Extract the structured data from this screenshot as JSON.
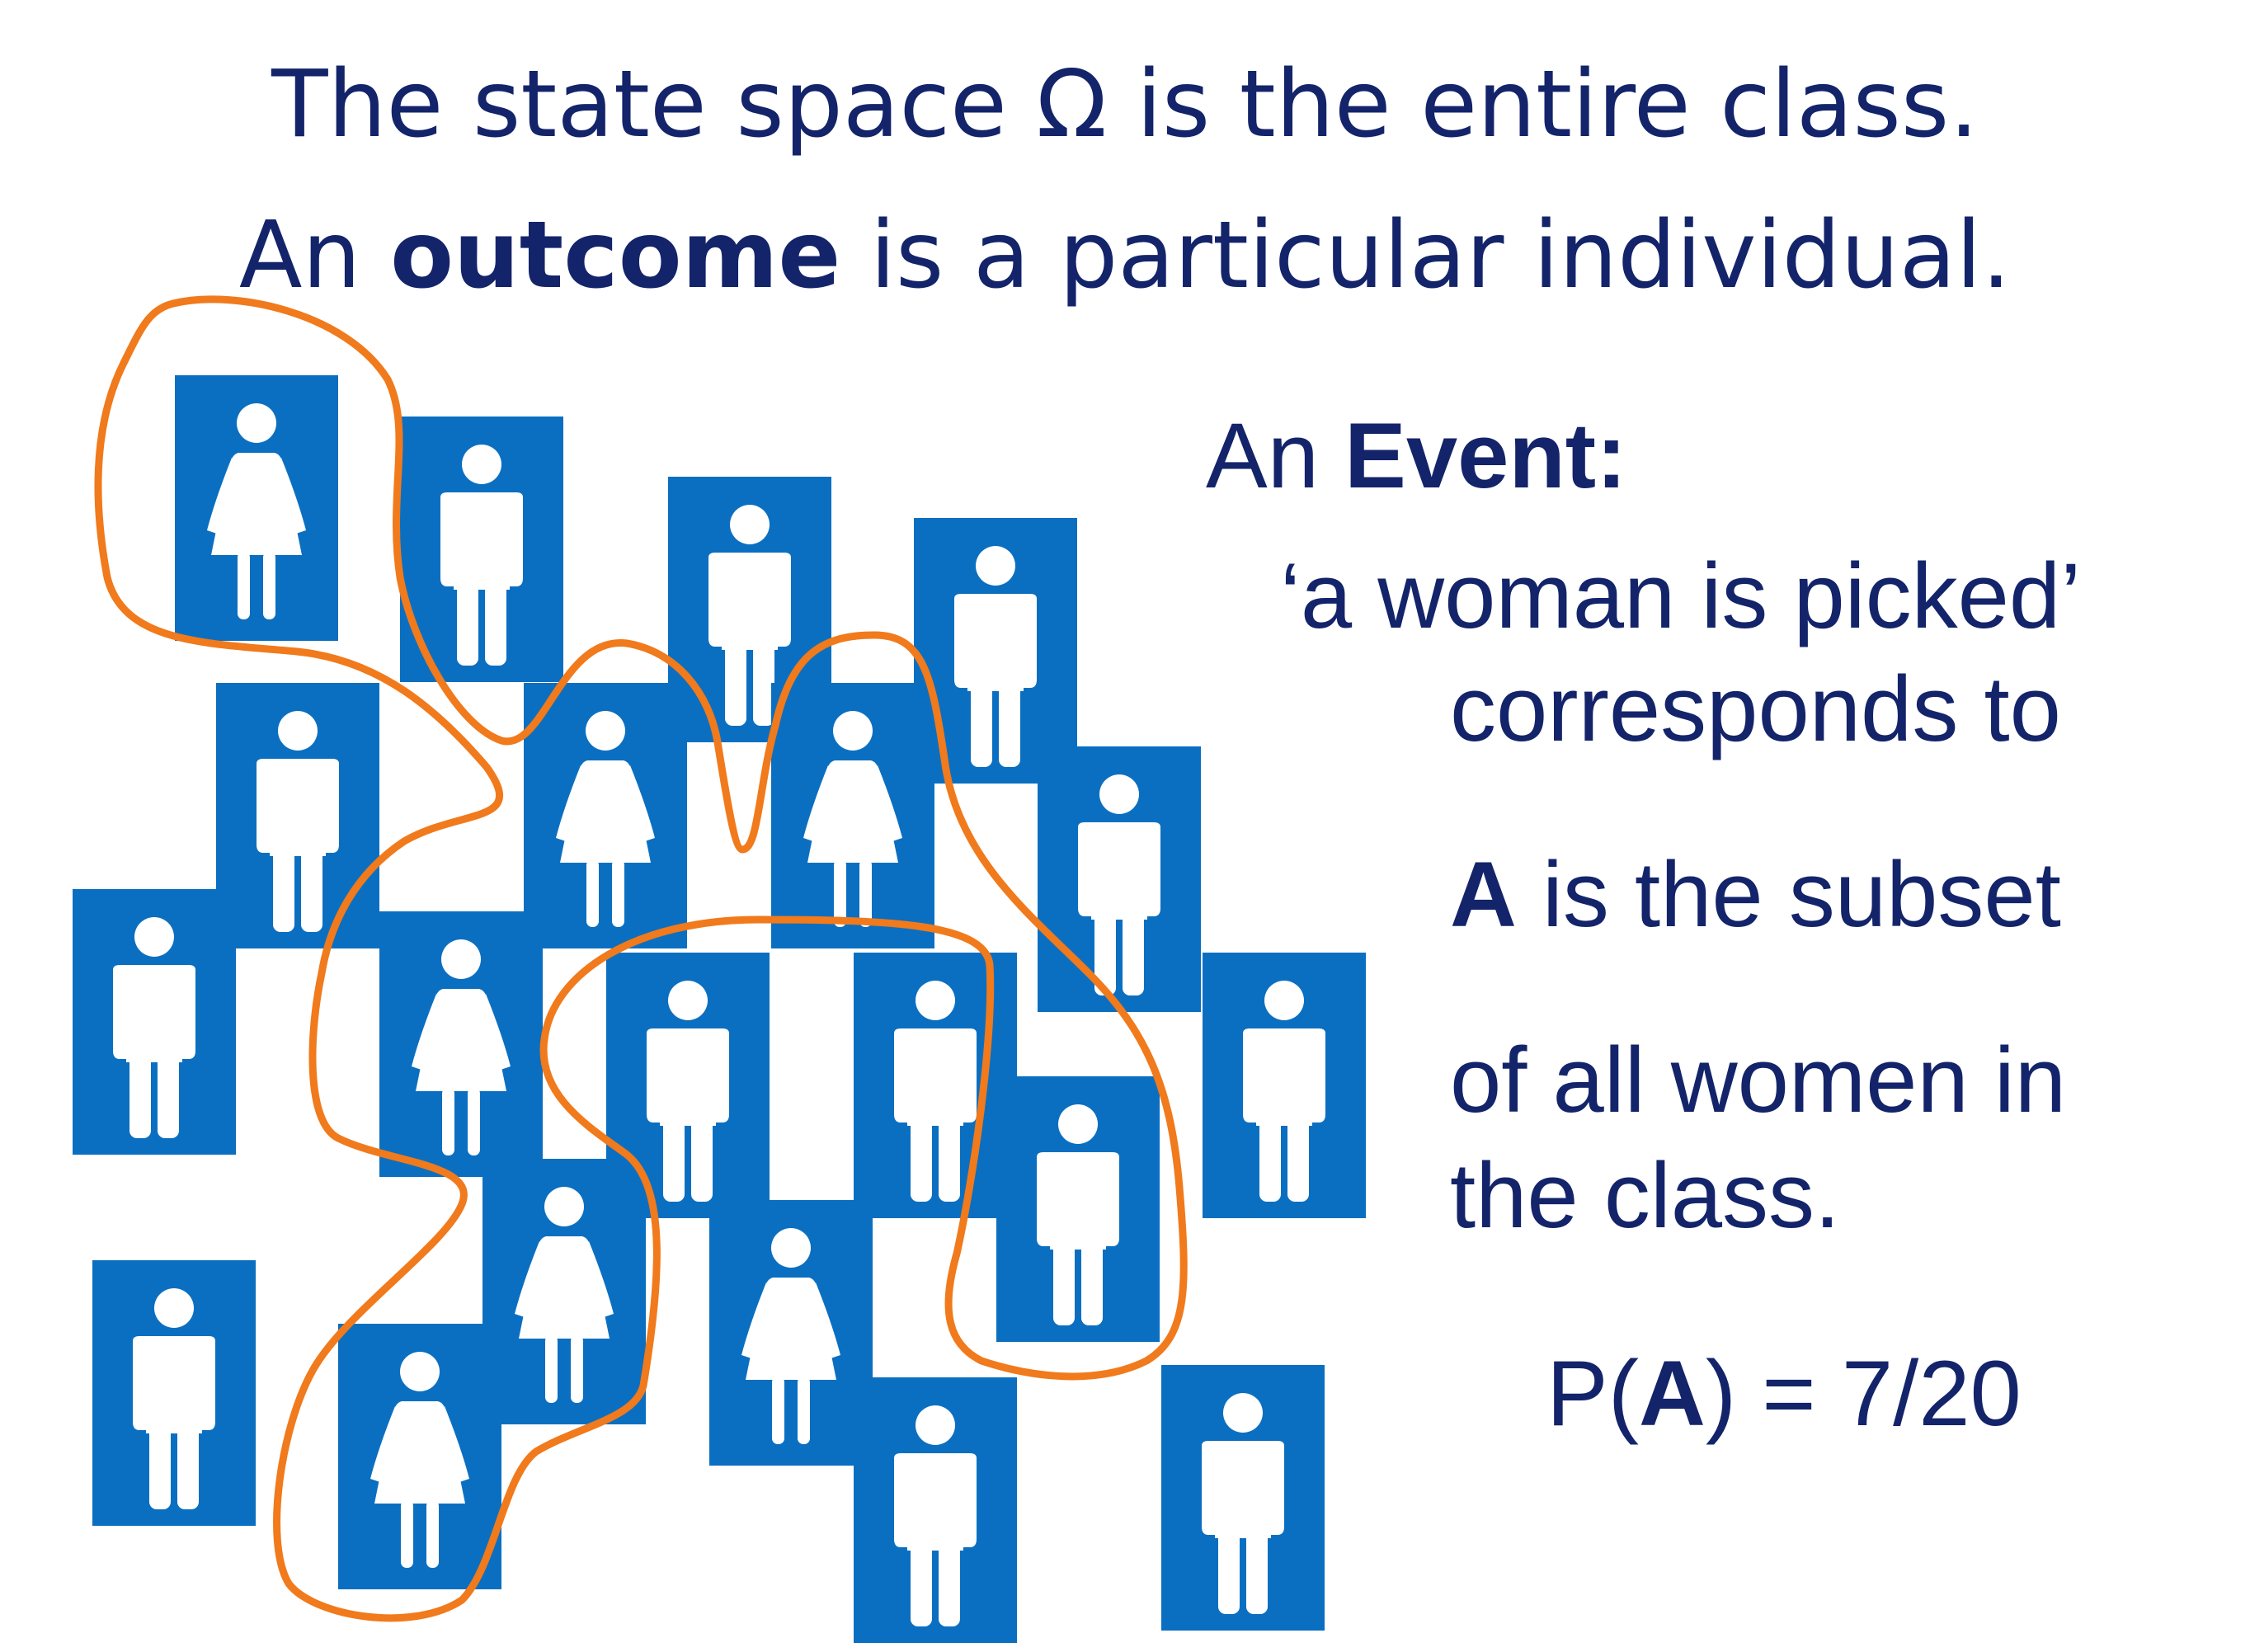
{
  "title": {
    "line1": "The state space Ω is the entire class.",
    "line2_prefix": "An ",
    "line2_bold": "outcome",
    "line2_suffix": " is a particular individual."
  },
  "event": {
    "heading_prefix": "An ",
    "heading_bold": "Event:",
    "quote": "‘a woman is picked’",
    "corresponds": "corresponds to",
    "subset_bold": "A",
    "subset_rest": " is the subset",
    "women_line": "of all women in",
    "class_line": "the class."
  },
  "probability": {
    "prefix": "P(",
    "bold": "A",
    "suffix": ") = 7/20"
  },
  "class": {
    "total": 20,
    "women": 7,
    "people": [
      "woman",
      "man",
      "man",
      "man",
      "man",
      "woman",
      "woman",
      "man",
      "man",
      "woman",
      "man",
      "man",
      "man",
      "woman",
      "woman",
      "man",
      "man",
      "woman",
      "man",
      "man"
    ]
  },
  "colors": {
    "text": "#14246a",
    "tile": "#0b6fc1",
    "figure": "#ffffff",
    "outline": "#f07a1c"
  },
  "icons": {
    "woman": "woman-icon",
    "man": "man-icon"
  }
}
